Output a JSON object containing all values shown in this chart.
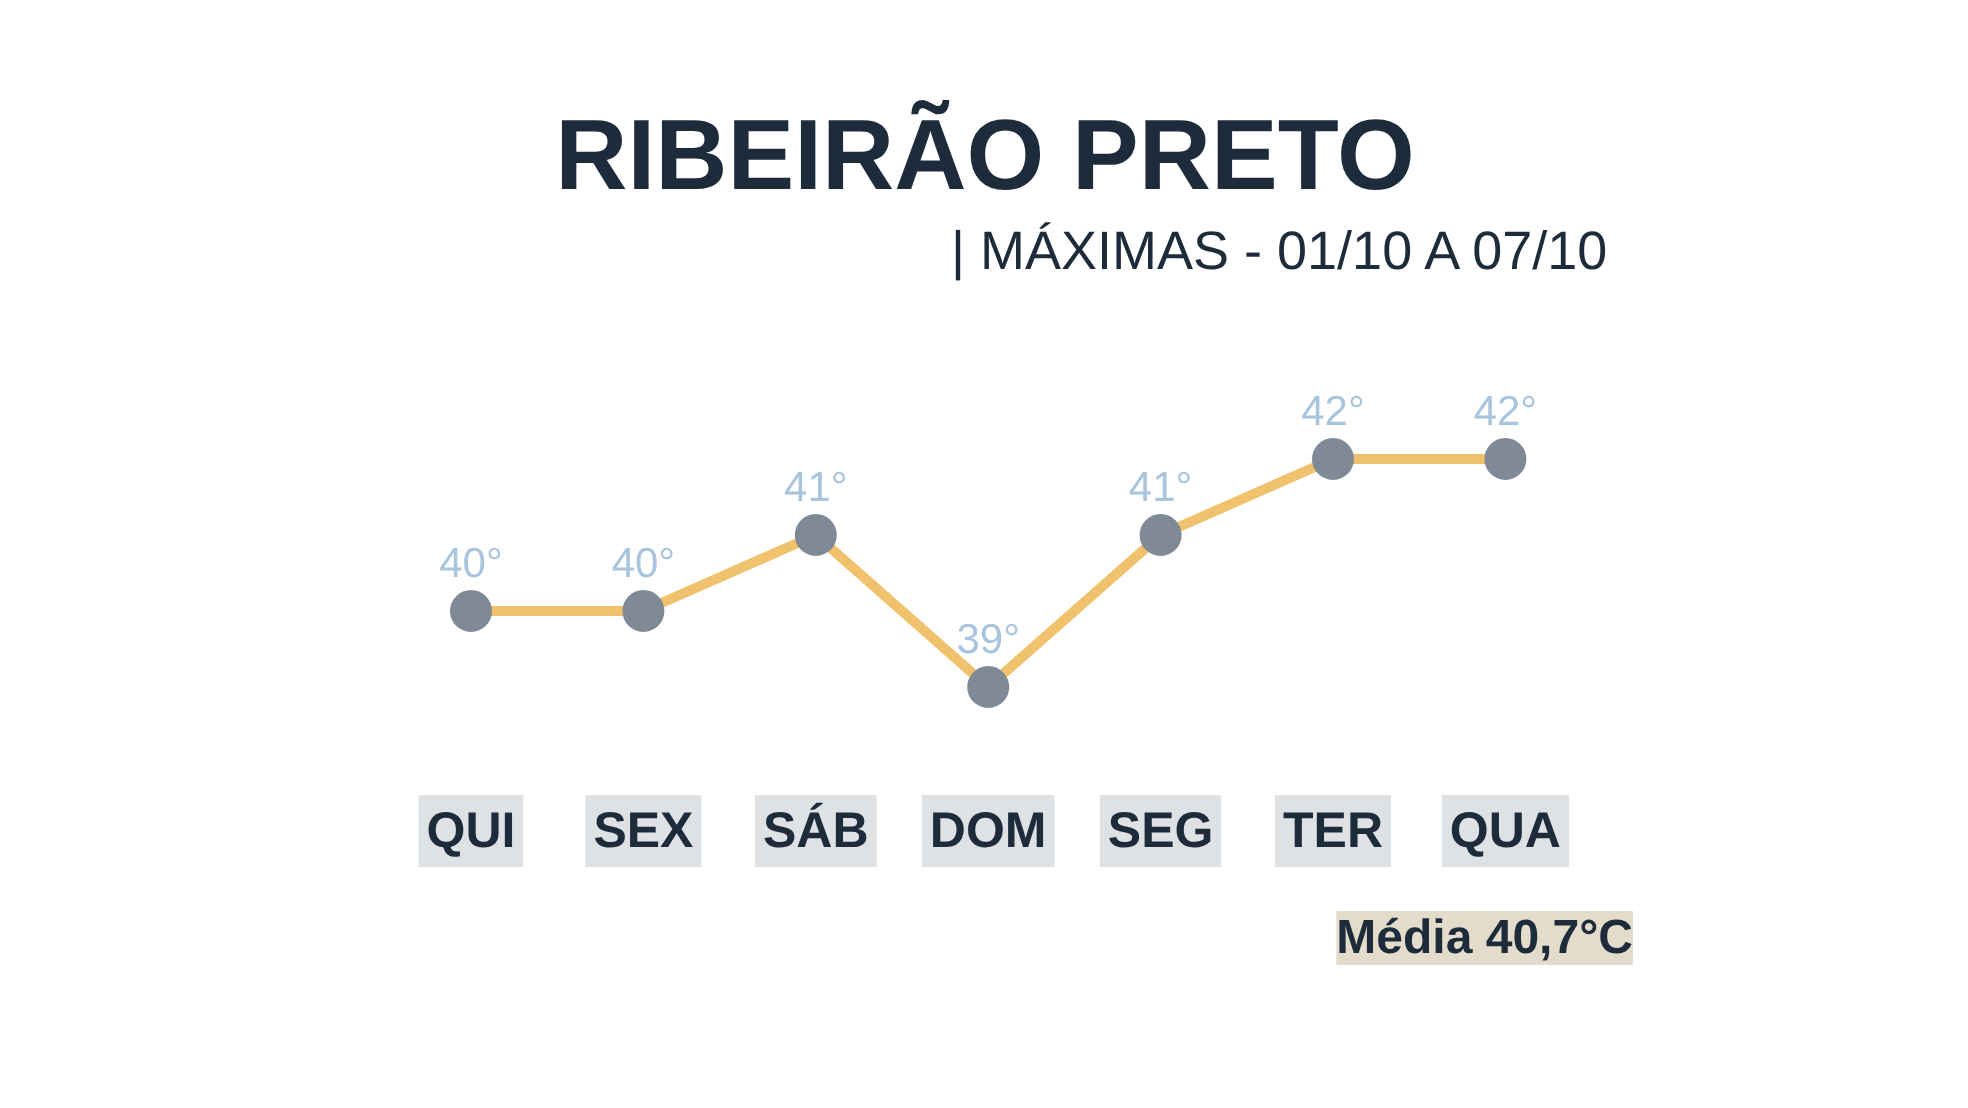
{
  "chart_data": {
    "type": "line",
    "title": "RIBEIRÃO PRETO",
    "subtitle": "| MÁXIMAS - 01/10 A 07/10",
    "categories": [
      "QUI",
      "SEX",
      "SÁB",
      "DOM",
      "SEG",
      "TER",
      "QUA"
    ],
    "series": [
      {
        "color": "#f0c26e",
        "values": [
          40,
          40,
          41,
          39,
          41,
          42,
          42
        ],
        "value_labels": [
          "40°",
          "40°",
          "41°",
          "39°",
          "41°",
          "42°",
          "42°"
        ]
      }
    ],
    "marker": "circle",
    "line_style": "solid",
    "grid": false,
    "annotations": [
      "Média 40,7°C"
    ]
  }
}
